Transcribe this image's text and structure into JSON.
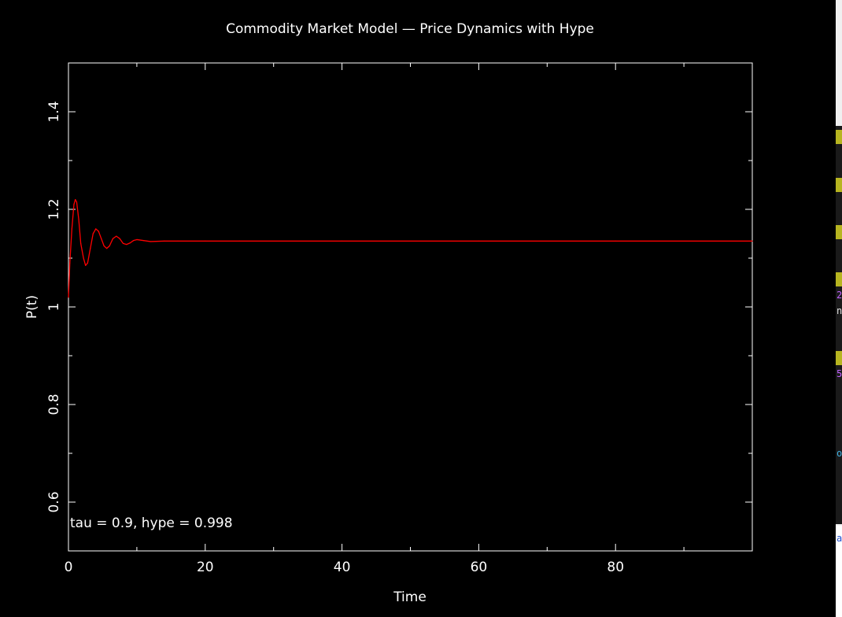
{
  "chart_data": {
    "type": "line",
    "title": "Commodity Market Model — Price Dynamics with Hype",
    "xlabel": "Time",
    "ylabel": "P(t)",
    "xlim": [
      0,
      100
    ],
    "ylim": [
      0.5,
      1.5
    ],
    "xticks": [
      "0",
      "20",
      "40",
      "60",
      "80"
    ],
    "yticks": [
      "0.6",
      "0.8",
      "1",
      "1.2",
      "1.4"
    ],
    "annotation": "tau = 0.9, hype = 0.998",
    "grid": false,
    "series": [
      {
        "color": "#ff0000",
        "x": [
          0,
          0.2,
          0.5,
          0.8,
          1.0,
          1.2,
          1.5,
          1.8,
          2.2,
          2.5,
          2.8,
          3.2,
          3.6,
          4.0,
          4.4,
          4.8,
          5.2,
          5.6,
          6.0,
          6.5,
          7.0,
          7.5,
          8.0,
          8.5,
          9.0,
          9.5,
          10.0,
          11.0,
          12.0,
          14.0,
          16.0,
          20.0,
          25.0,
          40.0,
          60.0,
          80.0,
          100.0
        ],
        "values": [
          1.02,
          1.09,
          1.16,
          1.21,
          1.22,
          1.215,
          1.18,
          1.13,
          1.1,
          1.085,
          1.09,
          1.12,
          1.15,
          1.16,
          1.155,
          1.14,
          1.125,
          1.12,
          1.125,
          1.14,
          1.145,
          1.14,
          1.13,
          1.128,
          1.131,
          1.136,
          1.138,
          1.136,
          1.134,
          1.135,
          1.135,
          1.135,
          1.135,
          1.135,
          1.135,
          1.135,
          1.135
        ]
      }
    ]
  },
  "side_terminal": {
    "glyphs": [
      {
        "text": "2",
        "color": "#c060ff"
      },
      {
        "text": "n",
        "color": "#e0e0e0"
      },
      {
        "text": "5",
        "color": "#c060ff"
      },
      {
        "text": "o",
        "color": "#40b0e0"
      },
      {
        "text": "a",
        "color": "#2050d0"
      }
    ]
  }
}
